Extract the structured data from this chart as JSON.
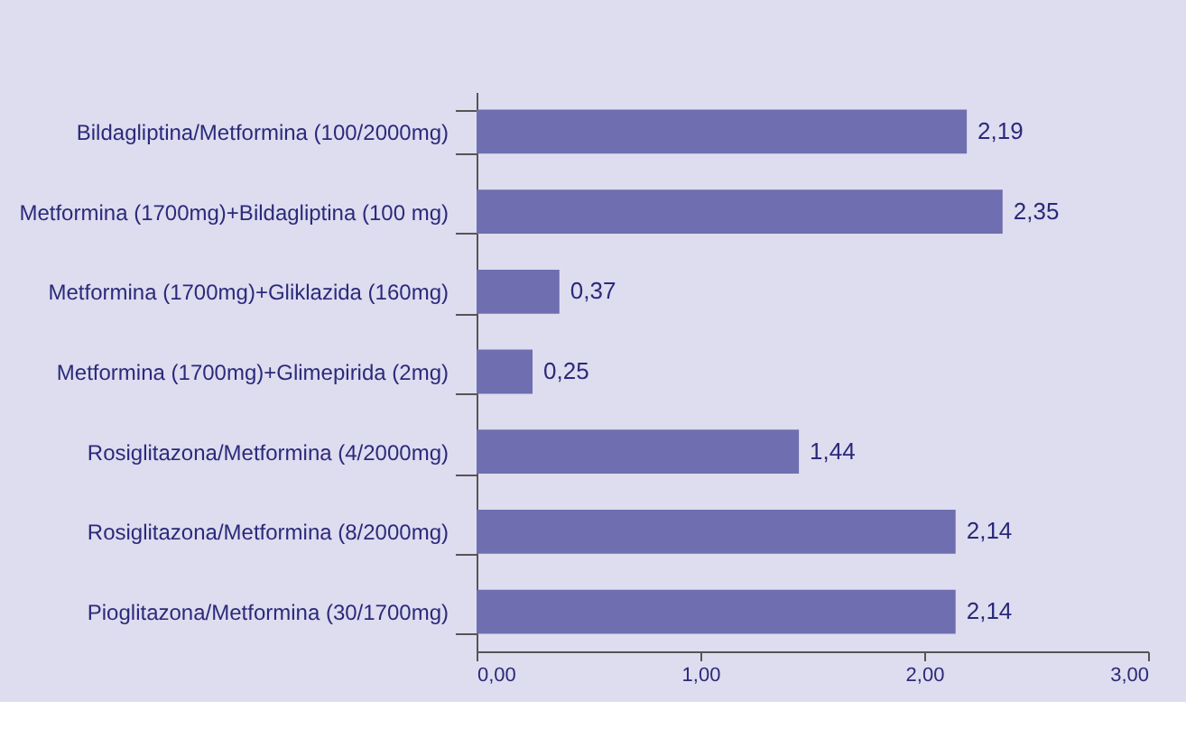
{
  "chart_data": {
    "type": "bar",
    "orientation": "horizontal",
    "categories": [
      "Bildagliptina/Metformina (100/2000mg)",
      "Metformina (1700mg)+Bildagliptina (100 mg)",
      "Metformina (1700mg)+Gliklazida (160mg)",
      "Metformina (1700mg)+Glimepirida (2mg)",
      "Rosiglitazona/Metformina (4/2000mg)",
      "Rosiglitazona/Metformina (8/2000mg)",
      "Pioglitazona/Metformina (30/1700mg)"
    ],
    "values": [
      2.19,
      2.35,
      0.37,
      0.25,
      1.44,
      2.14,
      2.14
    ],
    "value_labels": [
      "2,19",
      "2,35",
      "0,37",
      "0,25",
      "1,44",
      "2,14",
      "2,14"
    ],
    "color": "#6e6eb0",
    "xlim": [
      0,
      3
    ],
    "xticks": [
      {
        "value": 0,
        "label": "0,00"
      },
      {
        "value": 1,
        "label": "1,00"
      },
      {
        "value": 2,
        "label": "2,00"
      },
      {
        "value": 3,
        "label": "3,00"
      }
    ],
    "grid": false
  }
}
